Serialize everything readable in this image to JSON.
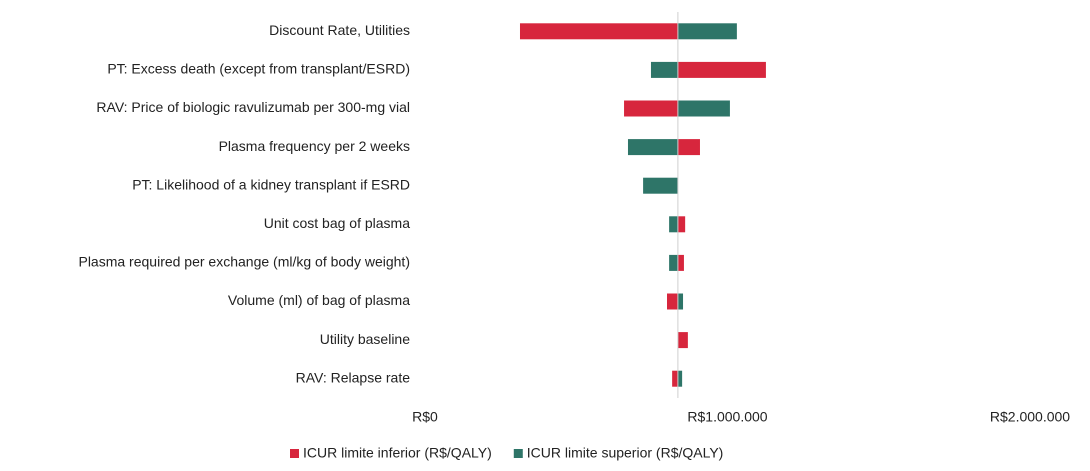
{
  "chart_data": {
    "type": "tornado",
    "categories": [
      "Discount Rate, Utilities",
      "PT: Excess death (except from transplant/ESRD)",
      "RAV: Price of biologic ravulizumab per 300-mg vial",
      "Plasma frequency per 2 weeks",
      "PT: Likelihood of a kidney transplant if ESRD",
      "Unit cost bag of plasma",
      "Plasma required per exchange (ml/kg of body weight)",
      "Volume (ml) of bag of plasma",
      "Utility baseline",
      "RAV: Relapse rate"
    ],
    "baseline": 836000,
    "series": [
      {
        "name": "ICUR limite inferior (R$/QALY)",
        "color": "#d7263d",
        "values": [
          314000,
          1127000,
          658000,
          909000,
          836000,
          860000,
          856000,
          800000,
          869000,
          817000
        ]
      },
      {
        "name": "ICUR limite superior (R$/QALY)",
        "color": "#2e7568",
        "values": [
          1031000,
          747000,
          1008000,
          671000,
          721000,
          807000,
          807000,
          853000,
          836000,
          850000
        ]
      }
    ],
    "xlim": [
      0,
      2000000
    ],
    "xticks": [
      {
        "value": 0,
        "label": "R$0"
      },
      {
        "value": 1000000,
        "label": "R$1.000.000"
      },
      {
        "value": 2000000,
        "label": "R$2.000.000"
      }
    ],
    "legend": "bottom"
  }
}
